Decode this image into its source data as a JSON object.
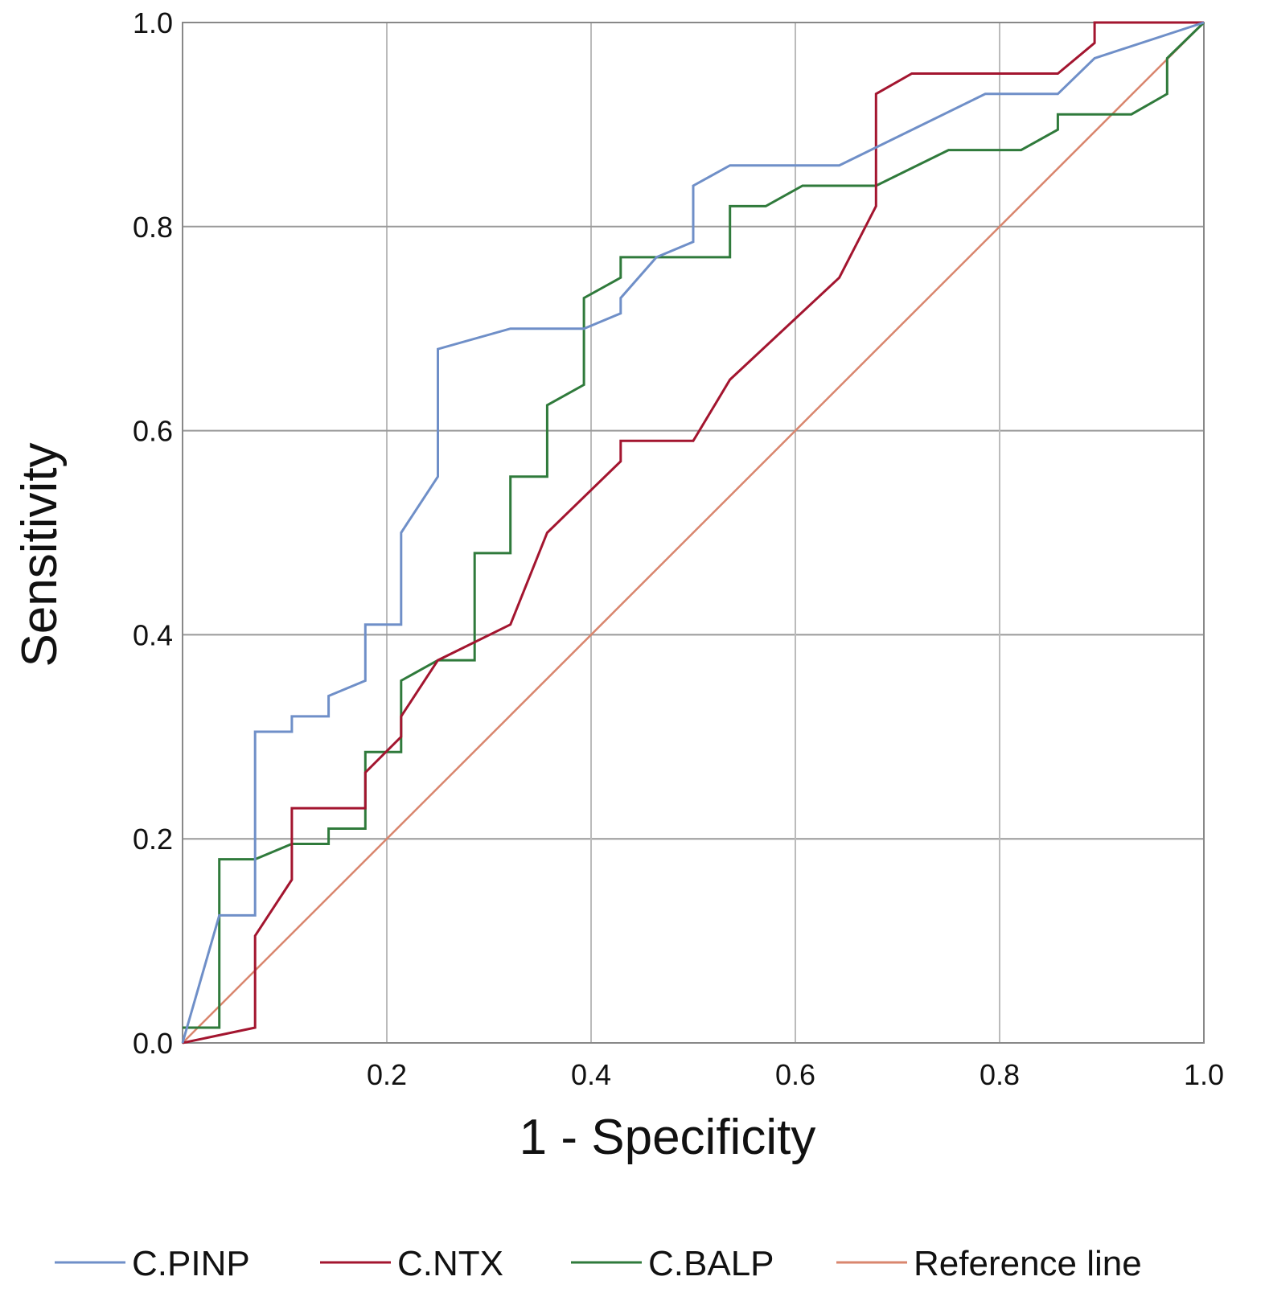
{
  "chart_data": {
    "type": "line",
    "title": "",
    "xlabel": "1 - Specificity",
    "ylabel": "Sensitivity",
    "xlim": [
      0,
      1
    ],
    "ylim": [
      0,
      1
    ],
    "xticks": [
      "0.2",
      "0.4",
      "0.6",
      "0.8",
      "1.0"
    ],
    "yticks": [
      "0.0",
      "0.2",
      "0.4",
      "0.6",
      "0.8",
      "1.0"
    ],
    "grid": true,
    "legend_placement": "bottom",
    "series": [
      {
        "name": "C.PINP",
        "color": "#6f8fc8",
        "points": [
          [
            0,
            0
          ],
          [
            0.036,
            0.125
          ],
          [
            0.071,
            0.125
          ],
          [
            0.071,
            0.305
          ],
          [
            0.107,
            0.305
          ],
          [
            0.107,
            0.32
          ],
          [
            0.143,
            0.32
          ],
          [
            0.143,
            0.34
          ],
          [
            0.179,
            0.355
          ],
          [
            0.179,
            0.41
          ],
          [
            0.214,
            0.41
          ],
          [
            0.214,
            0.5
          ],
          [
            0.25,
            0.555
          ],
          [
            0.25,
            0.68
          ],
          [
            0.321,
            0.7
          ],
          [
            0.393,
            0.7
          ],
          [
            0.429,
            0.715
          ],
          [
            0.429,
            0.73
          ],
          [
            0.464,
            0.77
          ],
          [
            0.5,
            0.785
          ],
          [
            0.5,
            0.84
          ],
          [
            0.536,
            0.86
          ],
          [
            0.643,
            0.86
          ],
          [
            0.786,
            0.93
          ],
          [
            0.857,
            0.93
          ],
          [
            0.893,
            0.965
          ],
          [
            1,
            1
          ]
        ]
      },
      {
        "name": "C.NTX",
        "color": "#a3152f",
        "points": [
          [
            0,
            0
          ],
          [
            0.071,
            0.015
          ],
          [
            0.071,
            0.105
          ],
          [
            0.107,
            0.16
          ],
          [
            0.107,
            0.23
          ],
          [
            0.179,
            0.23
          ],
          [
            0.179,
            0.265
          ],
          [
            0.214,
            0.3
          ],
          [
            0.214,
            0.32
          ],
          [
            0.25,
            0.375
          ],
          [
            0.321,
            0.41
          ],
          [
            0.357,
            0.5
          ],
          [
            0.429,
            0.57
          ],
          [
            0.429,
            0.59
          ],
          [
            0.5,
            0.59
          ],
          [
            0.536,
            0.65
          ],
          [
            0.643,
            0.75
          ],
          [
            0.679,
            0.82
          ],
          [
            0.679,
            0.93
          ],
          [
            0.714,
            0.95
          ],
          [
            0.857,
            0.95
          ],
          [
            0.893,
            0.98
          ],
          [
            0.893,
            1
          ],
          [
            1,
            1
          ]
        ]
      },
      {
        "name": "C.BALP",
        "color": "#2f7a3b",
        "points": [
          [
            0,
            0.015
          ],
          [
            0.036,
            0.015
          ],
          [
            0.036,
            0.18
          ],
          [
            0.071,
            0.18
          ],
          [
            0.107,
            0.195
          ],
          [
            0.143,
            0.195
          ],
          [
            0.143,
            0.21
          ],
          [
            0.179,
            0.21
          ],
          [
            0.179,
            0.285
          ],
          [
            0.214,
            0.285
          ],
          [
            0.214,
            0.355
          ],
          [
            0.25,
            0.375
          ],
          [
            0.286,
            0.375
          ],
          [
            0.286,
            0.48
          ],
          [
            0.321,
            0.48
          ],
          [
            0.321,
            0.555
          ],
          [
            0.357,
            0.555
          ],
          [
            0.357,
            0.625
          ],
          [
            0.393,
            0.645
          ],
          [
            0.393,
            0.73
          ],
          [
            0.429,
            0.75
          ],
          [
            0.429,
            0.77
          ],
          [
            0.536,
            0.77
          ],
          [
            0.536,
            0.82
          ],
          [
            0.571,
            0.82
          ],
          [
            0.607,
            0.84
          ],
          [
            0.679,
            0.84
          ],
          [
            0.75,
            0.875
          ],
          [
            0.821,
            0.875
          ],
          [
            0.857,
            0.895
          ],
          [
            0.857,
            0.91
          ],
          [
            0.929,
            0.91
          ],
          [
            0.964,
            0.93
          ],
          [
            0.964,
            0.965
          ],
          [
            1,
            1
          ]
        ]
      },
      {
        "name": "Reference line",
        "color": "#d9866e",
        "points": [
          [
            0,
            0
          ],
          [
            1,
            1
          ]
        ]
      }
    ]
  }
}
